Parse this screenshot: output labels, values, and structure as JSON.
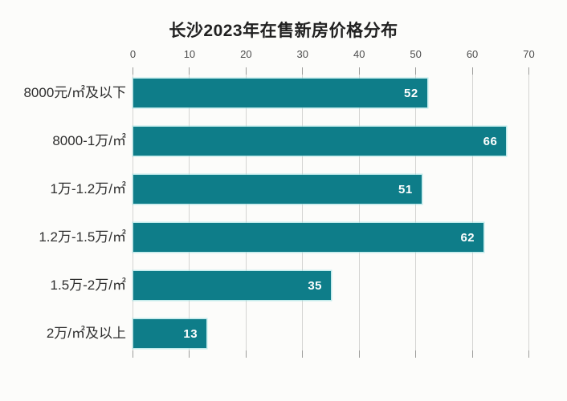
{
  "title": "长沙2023年在售新房价格分布",
  "colors": {
    "bar_fill": "#0e7d89",
    "bar_edge_glow": "#8edbdf",
    "value_label_text": "#ffffff",
    "category_label_text": "#2e2e2e",
    "tick_label_text": "#4d4d4d",
    "gridline": "#d4d4d2",
    "background": "#fcfcfa",
    "title_text": "#212121"
  },
  "chart_data": {
    "type": "bar",
    "orientation": "horizontal",
    "title": "长沙2023年在售新房价格分布",
    "categories": [
      "8000元/㎡及以下",
      "8000-1万/㎡",
      "1万-1.2万/㎡",
      "1.2万-1.5万/㎡",
      "1.5万-2万/㎡",
      "2万/㎡及以上"
    ],
    "values": [
      52,
      66,
      51,
      62,
      35,
      13
    ],
    "x_ticks": [
      0,
      10,
      20,
      30,
      40,
      50,
      60,
      70
    ],
    "xlim": [
      0,
      70
    ],
    "xlabel": "",
    "ylabel": "",
    "axis_position": "top",
    "grid": true,
    "legend": "none",
    "value_labels": "inside-end"
  }
}
